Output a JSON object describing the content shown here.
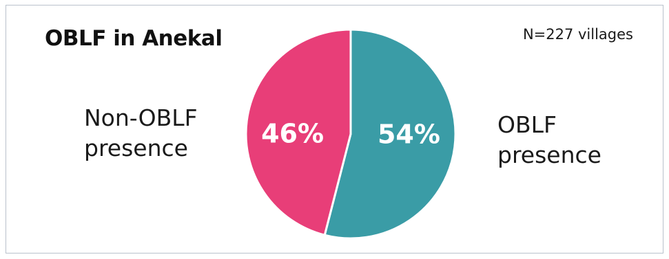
{
  "chart_data": {
    "type": "pie",
    "title": "OBLF in Anekal",
    "note": "N=227 villages",
    "slices": [
      {
        "name": "OBLF presence",
        "label_lines": [
          "OBLF",
          "presence"
        ],
        "value": 54,
        "value_label": "54%",
        "color": "#3a9ca6"
      },
      {
        "name": "Non-OBLF presence",
        "label_lines": [
          "Non-OBLF",
          "presence"
        ],
        "value": 46,
        "value_label": "46%",
        "color": "#e83e78"
      }
    ],
    "start_angle": "12 o'clock",
    "direction": "clockwise"
  }
}
